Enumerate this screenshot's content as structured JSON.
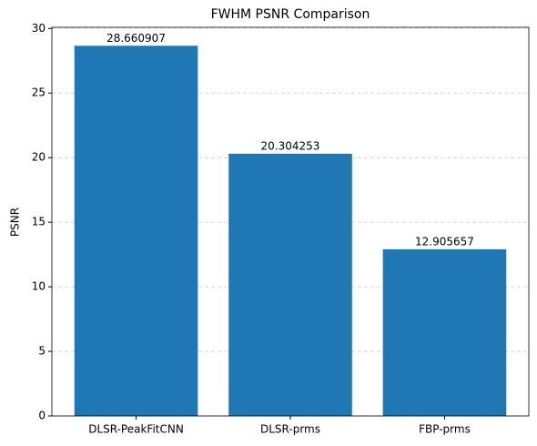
{
  "chart_data": {
    "type": "bar",
    "title": "FWHM PSNR Comparison",
    "y_label": "PSNR",
    "categories": [
      "DLSR-PeakFitCNN",
      "DLSR-prms",
      "FBP-prms"
    ],
    "values": [
      28.660907,
      20.304253,
      12.905657
    ],
    "color": "#1f77b4",
    "ylim": [
      0,
      30.09
    ],
    "yticks": [
      0,
      5,
      10,
      15,
      20,
      25,
      30
    ],
    "grid": true
  }
}
